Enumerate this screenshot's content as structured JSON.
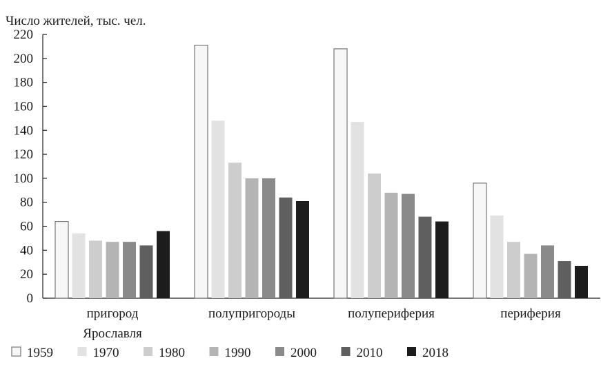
{
  "chart_data": {
    "type": "bar",
    "title": "",
    "ylabel": "Число жителей, тыс. чел.",
    "xlabel": "",
    "ylim": [
      0,
      220
    ],
    "yticks": [
      0,
      20,
      40,
      60,
      80,
      100,
      120,
      140,
      160,
      180,
      200,
      220
    ],
    "categories": [
      [
        "пригород",
        "Ярославля"
      ],
      [
        "полупригороды"
      ],
      [
        "полупериферия"
      ],
      [
        "периферия"
      ]
    ],
    "series": [
      {
        "name": "1959",
        "color": "#f7f7f7",
        "stroke": "#777777",
        "values": [
          64,
          211,
          208,
          96
        ]
      },
      {
        "name": "1970",
        "color": "#e2e2e2",
        "values": [
          54,
          148,
          147,
          69
        ]
      },
      {
        "name": "1980",
        "color": "#cdcdcd",
        "values": [
          48,
          113,
          104,
          47
        ]
      },
      {
        "name": "1990",
        "color": "#b4b4b4",
        "values": [
          47,
          100,
          88,
          37
        ]
      },
      {
        "name": "2000",
        "color": "#8a8a8a",
        "values": [
          47,
          100,
          87,
          44
        ]
      },
      {
        "name": "2010",
        "color": "#5f5f5f",
        "values": [
          44,
          84,
          68,
          31
        ]
      },
      {
        "name": "2018",
        "color": "#1c1c1c",
        "values": [
          56,
          81,
          64,
          27
        ]
      }
    ],
    "grid": false,
    "legend": "bottom"
  }
}
